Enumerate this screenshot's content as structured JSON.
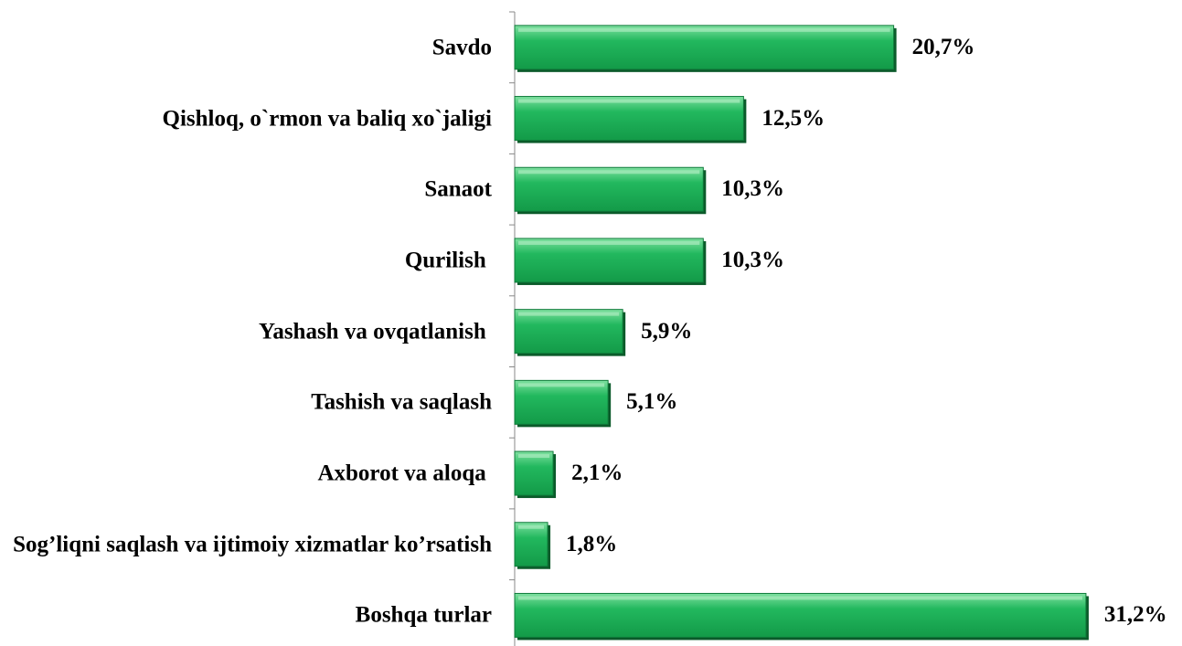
{
  "chart_data": {
    "type": "bar",
    "orientation": "horizontal",
    "categories": [
      "Savdo",
      "Qishloq, o`rmon va baliq xo`jaligi",
      "Sanaot",
      "Qurilish ",
      "Yashash va ovqatlanish ",
      "Tashish va saqlash",
      "Axborot va aloqa ",
      "Sog’liqni saqlash va ijtimoiy xizmatlar ko’rsatish",
      "Boshqa turlar"
    ],
    "values": [
      20.7,
      12.5,
      10.3,
      10.3,
      5.9,
      5.1,
      2.1,
      1.8,
      31.2
    ],
    "value_labels": [
      "20,7%",
      "12,5%",
      "10,3%",
      "10,3%",
      "5,9%",
      "5,1%",
      "2,1%",
      "1,8%",
      "31,2%"
    ],
    "color": "#1fb25a"
  }
}
